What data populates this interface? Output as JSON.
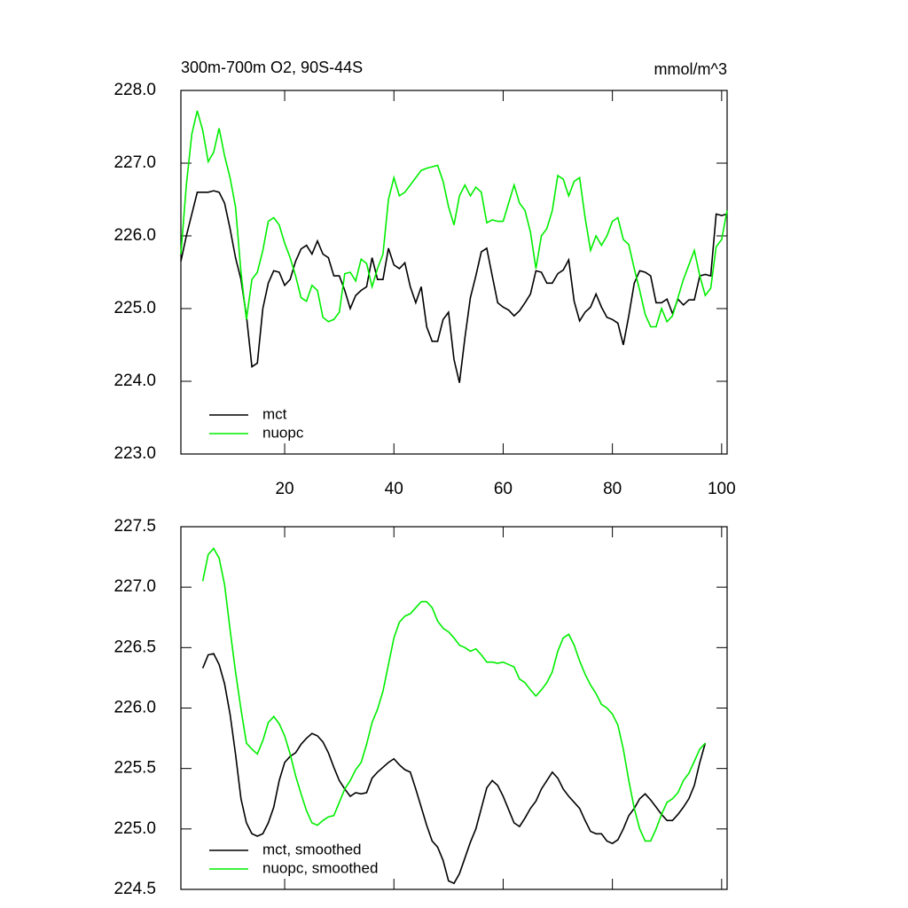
{
  "chart_data": [
    {
      "type": "line",
      "title": "300m-700m O2, 90S-44S",
      "units": "mmol/m^3",
      "x": [
        1,
        2,
        3,
        4,
        5,
        6,
        7,
        8,
        9,
        10,
        11,
        12,
        13,
        14,
        15,
        16,
        17,
        18,
        19,
        20,
        21,
        22,
        23,
        24,
        25,
        26,
        27,
        28,
        29,
        30,
        31,
        32,
        33,
        34,
        35,
        36,
        37,
        38,
        39,
        40,
        41,
        42,
        43,
        44,
        45,
        46,
        47,
        48,
        49,
        50,
        51,
        52,
        53,
        54,
        55,
        56,
        57,
        58,
        59,
        60,
        61,
        62,
        63,
        64,
        65,
        66,
        67,
        68,
        69,
        70,
        71,
        72,
        73,
        74,
        75,
        76,
        77,
        78,
        79,
        80,
        81,
        82,
        83,
        84,
        85,
        86,
        87,
        88,
        89,
        90,
        91,
        92,
        93,
        94,
        95,
        96,
        97,
        98,
        99,
        100,
        101
      ],
      "series": [
        {
          "name": "mct",
          "color": "#000000",
          "values": [
            225.65,
            226.0,
            226.3,
            226.6,
            226.6,
            226.6,
            226.62,
            226.6,
            226.45,
            226.1,
            225.7,
            225.4,
            224.9,
            224.2,
            224.25,
            225.0,
            225.35,
            225.52,
            225.5,
            225.32,
            225.4,
            225.65,
            225.82,
            225.87,
            225.75,
            225.93,
            225.75,
            225.7,
            225.45,
            225.45,
            225.25,
            225.0,
            225.18,
            225.25,
            225.3,
            225.7,
            225.4,
            225.4,
            225.83,
            225.6,
            225.55,
            225.63,
            225.3,
            225.08,
            225.3,
            224.75,
            224.55,
            224.55,
            224.85,
            224.95,
            224.3,
            223.98,
            224.6,
            225.15,
            225.45,
            225.78,
            225.83,
            225.45,
            225.08,
            225.02,
            224.98,
            224.9,
            224.97,
            225.08,
            225.2,
            225.52,
            225.5,
            225.35,
            225.35,
            225.48,
            225.53,
            225.67,
            225.1,
            224.83,
            224.95,
            225.02,
            225.2,
            225.02,
            224.88,
            224.85,
            224.8,
            224.5,
            224.9,
            225.35,
            225.52,
            225.5,
            225.45,
            225.08,
            225.08,
            225.13,
            224.93,
            225.13,
            225.05,
            225.12,
            225.12,
            225.45,
            225.47,
            225.45,
            226.3,
            226.28,
            226.3
          ]
        },
        {
          "name": "nuopc",
          "color": "#00ee00",
          "values": [
            225.75,
            226.7,
            227.4,
            227.72,
            227.45,
            227.02,
            227.15,
            227.48,
            227.1,
            226.8,
            226.4,
            225.5,
            224.85,
            225.4,
            225.5,
            225.8,
            226.2,
            226.25,
            226.15,
            225.9,
            225.7,
            225.45,
            225.15,
            225.1,
            225.32,
            225.25,
            224.88,
            224.82,
            224.85,
            224.95,
            225.48,
            225.5,
            225.38,
            225.68,
            225.62,
            225.3,
            225.55,
            225.75,
            226.5,
            226.8,
            226.55,
            226.6,
            226.7,
            226.8,
            226.9,
            226.93,
            226.95,
            226.97,
            226.75,
            226.4,
            226.15,
            226.55,
            226.7,
            226.55,
            226.67,
            226.6,
            226.18,
            226.22,
            226.2,
            226.2,
            226.45,
            226.7,
            226.45,
            226.35,
            226.05,
            225.55,
            226.0,
            226.1,
            226.35,
            226.83,
            226.78,
            226.55,
            226.75,
            226.8,
            226.25,
            225.8,
            226.0,
            225.87,
            226.0,
            226.2,
            226.25,
            225.95,
            225.88,
            225.55,
            225.25,
            224.92,
            224.75,
            224.75,
            225.0,
            224.82,
            224.9,
            225.15,
            225.4,
            225.6,
            225.8,
            225.45,
            225.18,
            225.28,
            225.85,
            225.95,
            226.35
          ]
        }
      ],
      "xlim": [
        1,
        101
      ],
      "xticks": [
        20,
        40,
        60,
        80,
        100
      ],
      "ylim": [
        223,
        228
      ],
      "yticks": [
        {
          "value": 223,
          "label": "223.0"
        },
        {
          "value": 224,
          "label": "224.0"
        },
        {
          "value": 225,
          "label": "225.0"
        },
        {
          "value": 226,
          "label": "226.0"
        },
        {
          "value": 227,
          "label": "227.0"
        },
        {
          "value": 228,
          "label": "228.0"
        }
      ],
      "legend": "lower left"
    },
    {
      "type": "line",
      "x": [
        5,
        6,
        7,
        8,
        9,
        10,
        11,
        12,
        13,
        14,
        15,
        16,
        17,
        18,
        19,
        20,
        21,
        22,
        23,
        24,
        25,
        26,
        27,
        28,
        29,
        30,
        31,
        32,
        33,
        34,
        35,
        36,
        37,
        38,
        39,
        40,
        41,
        42,
        43,
        44,
        45,
        46,
        47,
        48,
        49,
        50,
        51,
        52,
        53,
        54,
        55,
        56,
        57,
        58,
        59,
        60,
        61,
        62,
        63,
        64,
        65,
        66,
        67,
        68,
        69,
        70,
        71,
        72,
        73,
        74,
        75,
        76,
        77,
        78,
        79,
        80,
        81,
        82,
        83,
        84,
        85,
        86,
        87,
        88,
        89,
        90,
        91,
        92,
        93,
        94,
        95,
        96,
        97
      ],
      "series": [
        {
          "name": "mct, smoothed",
          "color": "#000000",
          "values": [
            226.33,
            226.44,
            226.45,
            226.36,
            226.2,
            225.95,
            225.62,
            225.25,
            225.05,
            224.96,
            224.94,
            224.96,
            225.05,
            225.18,
            225.4,
            225.55,
            225.6,
            225.63,
            225.7,
            225.75,
            225.79,
            225.77,
            225.72,
            225.63,
            225.51,
            225.4,
            225.33,
            225.27,
            225.3,
            225.29,
            225.3,
            225.42,
            225.47,
            225.51,
            225.55,
            225.58,
            225.53,
            225.49,
            225.47,
            225.33,
            225.18,
            225.03,
            224.9,
            224.85,
            224.74,
            224.57,
            224.55,
            224.63,
            224.76,
            224.89,
            225.0,
            225.17,
            225.34,
            225.4,
            225.36,
            225.27,
            225.16,
            225.05,
            225.02,
            225.09,
            225.17,
            225.23,
            225.33,
            225.4,
            225.47,
            225.42,
            225.33,
            225.27,
            225.22,
            225.17,
            225.07,
            224.98,
            224.96,
            224.96,
            224.9,
            224.88,
            224.91,
            225.0,
            225.11,
            225.17,
            225.25,
            225.29,
            225.24,
            225.18,
            225.12,
            225.07,
            225.07,
            225.12,
            225.18,
            225.25,
            225.36,
            225.55,
            225.71
          ]
        },
        {
          "name": "nuopc, smoothed",
          "color": "#00ee00",
          "values": [
            227.05,
            227.27,
            227.32,
            227.24,
            227.02,
            226.65,
            226.3,
            225.99,
            225.71,
            225.66,
            225.62,
            225.73,
            225.88,
            225.93,
            225.87,
            225.77,
            225.62,
            225.44,
            225.29,
            225.15,
            225.05,
            225.03,
            225.07,
            225.1,
            225.11,
            225.22,
            225.33,
            225.4,
            225.49,
            225.55,
            225.7,
            225.88,
            225.99,
            226.14,
            226.36,
            226.58,
            226.71,
            226.76,
            226.78,
            226.83,
            226.88,
            226.88,
            226.83,
            226.72,
            226.66,
            226.63,
            226.58,
            226.52,
            226.5,
            226.47,
            226.49,
            226.44,
            226.38,
            226.38,
            226.37,
            226.38,
            226.36,
            226.34,
            226.24,
            226.21,
            226.15,
            226.1,
            226.15,
            226.21,
            226.3,
            226.47,
            226.58,
            226.61,
            226.52,
            226.39,
            226.28,
            226.19,
            226.12,
            226.03,
            226.0,
            225.95,
            225.86,
            225.66,
            225.4,
            225.17,
            225.0,
            224.9,
            224.9,
            225.0,
            225.12,
            225.22,
            225.25,
            225.3,
            225.4,
            225.46,
            225.56,
            225.66,
            225.71
          ]
        }
      ],
      "xlim": [
        1,
        101
      ],
      "xticks": [
        20,
        40,
        60,
        80,
        100
      ],
      "ylim": [
        224.5,
        227.5
      ],
      "yticks": [
        {
          "value": 224.5,
          "label": "224.5"
        },
        {
          "value": 225,
          "label": "225.0"
        },
        {
          "value": 225.5,
          "label": "225.5"
        },
        {
          "value": 226,
          "label": "226.0"
        },
        {
          "value": 226.5,
          "label": "226.5"
        },
        {
          "value": 227,
          "label": "227.0"
        },
        {
          "value": 227.5,
          "label": "227.5"
        }
      ],
      "legend": "lower left"
    }
  ]
}
